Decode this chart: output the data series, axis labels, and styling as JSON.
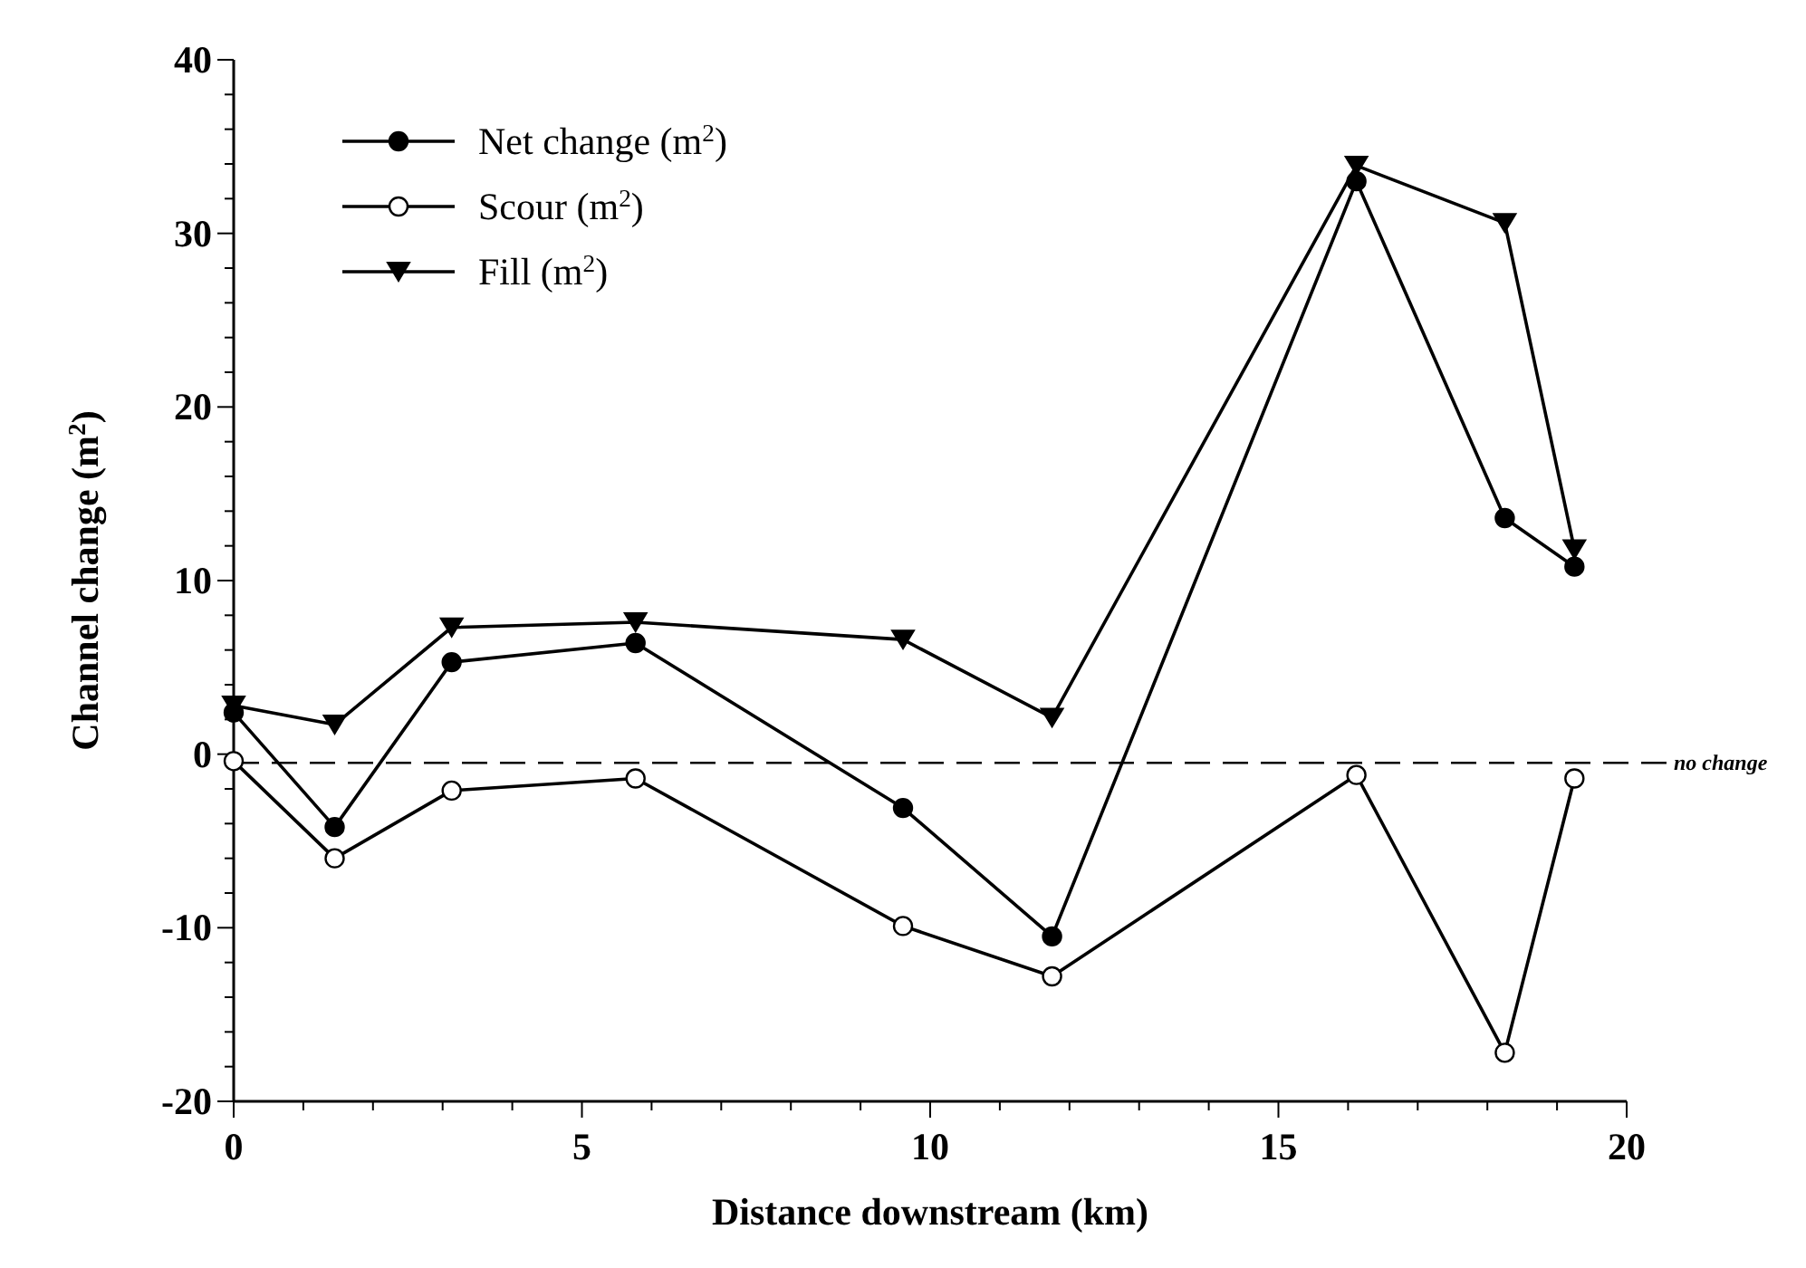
{
  "chart_data": {
    "type": "line",
    "xlabel": "Distance downstream (km)",
    "ylabel": "Channel change (m$^{2}$)",
    "xlim": [
      0,
      20
    ],
    "ylim": [
      -20,
      40
    ],
    "xticks": [
      0,
      {
        "value": 1,
        "label": null
      },
      {
        "value": 2,
        "label": null
      },
      {
        "value": 3,
        "label": null
      },
      {
        "value": 4,
        "label": null
      },
      5,
      {
        "value": 6,
        "label": null
      },
      {
        "value": 7,
        "label": null
      },
      {
        "value": 8,
        "label": null
      },
      {
        "value": 9,
        "label": null
      },
      10,
      {
        "value": 11,
        "label": null
      },
      {
        "value": 12,
        "label": null
      },
      {
        "value": 13,
        "label": null
      },
      {
        "value": 14,
        "label": null
      },
      15,
      {
        "value": 16,
        "label": null
      },
      {
        "value": 17,
        "label": null
      },
      {
        "value": 18,
        "label": null
      },
      {
        "value": 19,
        "label": null
      },
      20
    ],
    "yticks": [
      -20,
      {
        "value": -18,
        "label": null
      },
      {
        "value": -16,
        "label": null
      },
      {
        "value": -14,
        "label": null
      },
      {
        "value": -12,
        "label": null
      },
      -10,
      {
        "value": -8,
        "label": null
      },
      {
        "value": -6,
        "label": null
      },
      {
        "value": -4,
        "label": null
      },
      {
        "value": -2,
        "label": null
      },
      0,
      {
        "value": 2,
        "label": null
      },
      {
        "value": 4,
        "label": null
      },
      {
        "value": 6,
        "label": null
      },
      {
        "value": 8,
        "label": null
      },
      10,
      {
        "value": 12,
        "label": null
      },
      {
        "value": 14,
        "label": null
      },
      {
        "value": 16,
        "label": null
      },
      {
        "value": 18,
        "label": null
      },
      20,
      {
        "value": 22,
        "label": null
      },
      {
        "value": 24,
        "label": null
      },
      {
        "value": 26,
        "label": null
      },
      {
        "value": 28,
        "label": null
      },
      30,
      {
        "value": 32,
        "label": null
      },
      {
        "value": 34,
        "label": null
      },
      {
        "value": 36,
        "label": null
      },
      {
        "value": 38,
        "label": null
      },
      40
    ],
    "grid": false,
    "legend": "top left",
    "line_style": "solid",
    "x": [
      0,
      1.45,
      3.13,
      5.77,
      9.61,
      11.75,
      16.12,
      18.25,
      19.25
    ],
    "series": [
      {
        "name": "Net change (m$^{2}$)",
        "color": "#000000",
        "marker": "circle",
        "values": [
          2.4,
          -4.2,
          5.3,
          6.4,
          -3.1,
          -10.5,
          33.0,
          13.6,
          10.8
        ]
      },
      {
        "name": "Scour (m$^{2}$)",
        "color": "#000000",
        "marker": "circle-open",
        "values": [
          -0.4,
          -6.0,
          -2.1,
          -1.4,
          -9.9,
          -12.8,
          -1.2,
          -17.2,
          -1.4
        ]
      },
      {
        "name": "Fill (m$^{2}$)",
        "color": "#000000",
        "marker": "triangle",
        "values": [
          2.8,
          1.7,
          7.3,
          7.6,
          6.6,
          2.1,
          33.9,
          30.6,
          11.8
        ]
      }
    ],
    "ref_lines": [
      {
        "axis": "y",
        "value": -0.5,
        "label": "no change",
        "line_style": "dashed",
        "color": "#000000"
      }
    ]
  }
}
